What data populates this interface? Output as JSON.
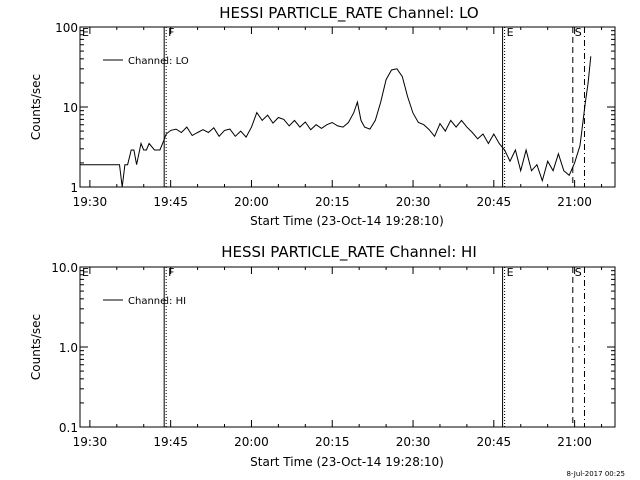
{
  "footer": {
    "timestamp": "8-Jul-2017 00:25"
  },
  "chart_data": [
    {
      "type": "line",
      "title": "HESSI PARTICLE_RATE Channel: LO",
      "xlabel": "Start Time (23-Oct-14 19:28:10)",
      "ylabel": "Counts/sec",
      "yscale": "log",
      "xlim": [
        "19:28:10",
        "21:07:30"
      ],
      "ylim": [
        1,
        100
      ],
      "x_ticks": [
        "19:30",
        "19:45",
        "20:00",
        "20:15",
        "20:30",
        "20:45",
        "21:00"
      ],
      "y_ticks": [
        "1",
        "10",
        "100"
      ],
      "legend": {
        "entries": [
          "Channel: LO"
        ],
        "position": "top-left"
      },
      "grid": false,
      "markers": [
        {
          "label": "E",
          "time": "19:28:10",
          "style": "none"
        },
        {
          "label": "F",
          "time": "19:44:10",
          "style": "dotted"
        },
        {
          "label": "E",
          "time": "20:47:00",
          "style": "dotted"
        },
        {
          "label": "S",
          "time": "20:59:40",
          "style": "dashed"
        },
        {
          "label": "",
          "time": "21:01:50",
          "style": "dashdot"
        }
      ],
      "series": [
        {
          "name": "Channel: LO",
          "x": [
            "19:28:10",
            "19:30:10",
            "19:32:10",
            "19:34:10",
            "19:35:30",
            "19:36:00",
            "19:36:30",
            "19:37:00",
            "19:37:40",
            "19:38:10",
            "19:38:40",
            "19:39:30",
            "19:40:00",
            "19:40:30",
            "19:41:00",
            "19:42:00",
            "19:43:00",
            "19:43:30",
            "19:44:10",
            "19:45:00",
            "19:46:00",
            "19:47:00",
            "19:48:00",
            "19:49:00",
            "19:50:00",
            "19:51:00",
            "19:52:00",
            "19:53:00",
            "19:54:00",
            "19:55:00",
            "19:56:00",
            "19:57:00",
            "19:58:00",
            "19:59:00",
            "20:00:00",
            "20:01:00",
            "20:02:00",
            "20:03:00",
            "20:04:00",
            "20:05:00",
            "20:06:00",
            "20:07:00",
            "20:08:00",
            "20:09:00",
            "20:10:00",
            "20:11:00",
            "20:12:00",
            "20:13:00",
            "20:14:00",
            "20:15:00",
            "20:16:00",
            "20:17:00",
            "20:18:00",
            "20:19:00",
            "20:19:40",
            "20:20:20",
            "20:21:00",
            "20:22:00",
            "20:23:00",
            "20:24:00",
            "20:25:00",
            "20:26:00",
            "20:27:00",
            "20:28:00",
            "20:29:00",
            "20:30:00",
            "20:31:00",
            "20:32:00",
            "20:33:00",
            "20:34:00",
            "20:35:00",
            "20:36:00",
            "20:37:00",
            "20:38:00",
            "20:39:00",
            "20:40:00",
            "20:41:00",
            "20:42:00",
            "20:43:00",
            "20:44:00",
            "20:45:00",
            "20:46:00",
            "20:47:00",
            "20:48:00",
            "20:49:00",
            "20:50:00",
            "20:51:00",
            "20:52:00",
            "20:53:00",
            "20:54:00",
            "20:55:00",
            "20:56:00",
            "20:57:00",
            "20:58:00",
            "20:59:00",
            "21:00:00",
            "21:01:00",
            "21:02:00",
            "21:02:30",
            "21:03:00"
          ],
          "y": [
            1.9,
            1.9,
            1.9,
            1.9,
            1.9,
            1,
            1.9,
            1.9,
            2.9,
            2.9,
            1.9,
            3.5,
            2.9,
            2.9,
            3.5,
            2.9,
            2.9,
            3.5,
            4.6,
            5.1,
            5.3,
            4.8,
            5.6,
            4.4,
            4.8,
            5.2,
            4.8,
            5.5,
            4.3,
            5.1,
            5.3,
            4.3,
            5.0,
            4.2,
            5.6,
            8.5,
            6.8,
            7.9,
            6.3,
            7.4,
            7.0,
            5.8,
            6.8,
            5.6,
            6.5,
            5.2,
            6.0,
            5.4,
            6.0,
            6.4,
            5.8,
            5.6,
            6.4,
            8.5,
            11.5,
            6.8,
            5.6,
            5.3,
            6.8,
            11.5,
            22,
            29,
            30,
            24,
            13.5,
            8.4,
            6.4,
            6.0,
            5.2,
            4.3,
            6.2,
            5.0,
            6.8,
            5.6,
            6.8,
            5.6,
            4.8,
            4.0,
            4.6,
            3.5,
            4.6,
            3.5,
            2.9,
            2.1,
            2.9,
            1.6,
            2.9,
            1.6,
            1.9,
            1.2,
            2.1,
            1.6,
            2.6,
            1.6,
            1.4,
            2.0,
            3.3,
            11.5,
            20,
            43
          ]
        }
      ]
    },
    {
      "type": "line",
      "title": "HESSI PARTICLE_RATE Channel: HI",
      "xlabel": "Start Time (23-Oct-14 19:28:10)",
      "ylabel": "Counts/sec",
      "yscale": "log",
      "xlim": [
        "19:28:10",
        "21:07:30"
      ],
      "ylim": [
        0.1,
        10.0
      ],
      "x_ticks": [
        "19:30",
        "19:45",
        "20:00",
        "20:15",
        "20:30",
        "20:45",
        "21:00"
      ],
      "y_ticks": [
        "0.1",
        "1.0",
        "10.0"
      ],
      "legend": {
        "entries": [
          "Channel: HI"
        ],
        "position": "top-left"
      },
      "grid": false,
      "markers": [
        {
          "label": "E",
          "time": "19:28:10",
          "style": "none"
        },
        {
          "label": "F",
          "time": "19:44:10",
          "style": "dotted"
        },
        {
          "label": "E",
          "time": "20:47:00",
          "style": "dotted"
        },
        {
          "label": "S",
          "time": "20:59:40",
          "style": "dashed"
        },
        {
          "label": "",
          "time": "21:01:50",
          "style": "dashdot"
        }
      ],
      "series": [
        {
          "name": "Channel: HI",
          "x": [
            "21:00:40",
            "21:01:00"
          ],
          "y": [
            1.0,
            1.0
          ]
        }
      ]
    }
  ]
}
